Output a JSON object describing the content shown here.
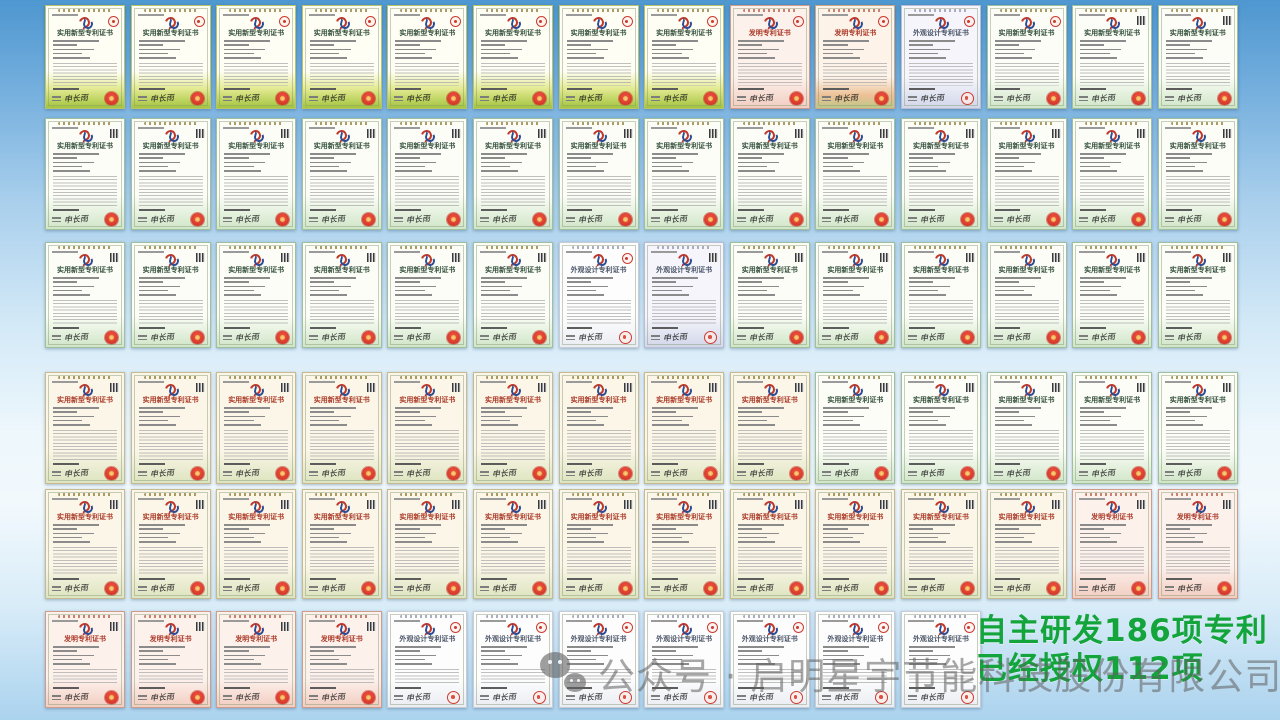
{
  "slide": {
    "overlay": {
      "line1": "自主研发186项专利",
      "line2": "已经授权112项",
      "color": "#13a53c"
    },
    "watermark": {
      "icon": "wechat-icon",
      "text": "公众号 · 启明星宇节能科技股份有限公司"
    },
    "background": {
      "top_color": "#4e97d0",
      "middle_color": "#f2f9fd",
      "bottom_color": "#abd3ee"
    }
  },
  "certificate": {
    "titles": {
      "utility": "实用新型专利证书",
      "invention": "发明专利证书",
      "design": "外观设计专利证书"
    },
    "signature": "申长雨",
    "corner_icons": {
      "seal": "red-seal-icon",
      "qr": "qr-code-icon"
    },
    "accent_colors": {
      "seal_red": "#cc3b30",
      "emblem_red": "#d0312d",
      "green_band": "#a3c43e"
    }
  },
  "grid": {
    "rows": [
      {
        "name": "row-1",
        "certs": [
          {
            "variant": "green",
            "type": "utility",
            "corner": "seal"
          },
          {
            "variant": "green",
            "type": "utility",
            "corner": "seal"
          },
          {
            "variant": "green",
            "type": "utility",
            "corner": "seal"
          },
          {
            "variant": "green",
            "type": "utility",
            "corner": "seal"
          },
          {
            "variant": "green",
            "type": "utility",
            "corner": "seal"
          },
          {
            "variant": "green",
            "type": "utility",
            "corner": "seal"
          },
          {
            "variant": "green",
            "type": "utility",
            "corner": "seal"
          },
          {
            "variant": "green",
            "type": "utility",
            "corner": "seal"
          },
          {
            "variant": "pink",
            "type": "invention",
            "corner": "seal"
          },
          {
            "variant": "pinkwarm",
            "type": "invention",
            "corner": "seal"
          },
          {
            "variant": "lavender",
            "type": "design",
            "corner": "seal"
          },
          {
            "variant": "mint",
            "type": "utility",
            "corner": "seal"
          },
          {
            "variant": "mint",
            "type": "utility",
            "corner": "qr"
          },
          {
            "variant": "mint",
            "type": "utility",
            "corner": "qr"
          }
        ]
      },
      {
        "name": "row-2",
        "certs": [
          {
            "variant": "mint",
            "type": "utility",
            "corner": "qr"
          },
          {
            "variant": "mint",
            "type": "utility",
            "corner": "qr"
          },
          {
            "variant": "mint",
            "type": "utility",
            "corner": "qr"
          },
          {
            "variant": "mint",
            "type": "utility",
            "corner": "qr"
          },
          {
            "variant": "mint",
            "type": "utility",
            "corner": "qr"
          },
          {
            "variant": "mint",
            "type": "utility",
            "corner": "qr"
          },
          {
            "variant": "mint",
            "type": "utility",
            "corner": "qr"
          },
          {
            "variant": "mint",
            "type": "utility",
            "corner": "qr"
          },
          {
            "variant": "mint",
            "type": "utility",
            "corner": "qr"
          },
          {
            "variant": "mint",
            "type": "utility",
            "corner": "qr"
          },
          {
            "variant": "mint",
            "type": "utility",
            "corner": "qr"
          },
          {
            "variant": "mint",
            "type": "utility",
            "corner": "qr"
          },
          {
            "variant": "mint",
            "type": "utility",
            "corner": "qr"
          },
          {
            "variant": "mint",
            "type": "utility",
            "corner": "qr"
          }
        ]
      },
      {
        "name": "row-3",
        "certs": [
          {
            "variant": "mint",
            "type": "utility",
            "corner": "qr"
          },
          {
            "variant": "mint",
            "type": "utility",
            "corner": "qr"
          },
          {
            "variant": "mint",
            "type": "utility",
            "corner": "qr"
          },
          {
            "variant": "mint",
            "type": "utility",
            "corner": "qr"
          },
          {
            "variant": "mint",
            "type": "utility",
            "corner": "qr"
          },
          {
            "variant": "mint",
            "type": "utility",
            "corner": "qr"
          },
          {
            "variant": "white",
            "type": "design",
            "corner": "seal"
          },
          {
            "variant": "lavender",
            "type": "design",
            "corner": "qr"
          },
          {
            "variant": "mint",
            "type": "utility",
            "corner": "qr"
          },
          {
            "variant": "mint",
            "type": "utility",
            "corner": "qr"
          },
          {
            "variant": "mint",
            "type": "utility",
            "corner": "qr"
          },
          {
            "variant": "mint",
            "type": "utility",
            "corner": "qr"
          },
          {
            "variant": "mint",
            "type": "utility",
            "corner": "qr"
          },
          {
            "variant": "mint",
            "type": "utility",
            "corner": "qr"
          }
        ]
      },
      {
        "name": "row-4",
        "certs": [
          {
            "variant": "ivory",
            "type": "utility",
            "corner": "qr"
          },
          {
            "variant": "ivory",
            "type": "utility",
            "corner": "qr"
          },
          {
            "variant": "ivory",
            "type": "utility",
            "corner": "qr"
          },
          {
            "variant": "ivory",
            "type": "utility",
            "corner": "qr"
          },
          {
            "variant": "ivory",
            "type": "utility",
            "corner": "qr"
          },
          {
            "variant": "ivory",
            "type": "utility",
            "corner": "qr"
          },
          {
            "variant": "ivory",
            "type": "utility",
            "corner": "qr"
          },
          {
            "variant": "ivory",
            "type": "utility",
            "corner": "qr"
          },
          {
            "variant": "ivory",
            "type": "utility",
            "corner": "qr"
          },
          {
            "variant": "mint",
            "type": "utility",
            "corner": "qr"
          },
          {
            "variant": "mint",
            "type": "utility",
            "corner": "qr"
          },
          {
            "variant": "mint",
            "type": "utility",
            "corner": "qr"
          },
          {
            "variant": "mint",
            "type": "utility",
            "corner": "qr"
          },
          {
            "variant": "mint",
            "type": "utility",
            "corner": "qr"
          }
        ]
      },
      {
        "name": "row-5",
        "certs": [
          {
            "variant": "ivory",
            "type": "utility",
            "corner": "qr"
          },
          {
            "variant": "ivory",
            "type": "utility",
            "corner": "qr"
          },
          {
            "variant": "ivory",
            "type": "utility",
            "corner": "qr"
          },
          {
            "variant": "ivory",
            "type": "utility",
            "corner": "qr"
          },
          {
            "variant": "ivory",
            "type": "utility",
            "corner": "qr"
          },
          {
            "variant": "ivory",
            "type": "utility",
            "corner": "qr"
          },
          {
            "variant": "ivory",
            "type": "utility",
            "corner": "qr"
          },
          {
            "variant": "ivory",
            "type": "utility",
            "corner": "qr"
          },
          {
            "variant": "ivory",
            "type": "utility",
            "corner": "qr"
          },
          {
            "variant": "ivory",
            "type": "utility",
            "corner": "qr"
          },
          {
            "variant": "ivory",
            "type": "utility",
            "corner": "qr"
          },
          {
            "variant": "ivory",
            "type": "utility",
            "corner": "qr"
          },
          {
            "variant": "pink",
            "type": "invention",
            "corner": "qr"
          },
          {
            "variant": "pink",
            "type": "invention",
            "corner": "qr"
          }
        ]
      },
      {
        "name": "row-6",
        "certs": [
          {
            "variant": "pink",
            "type": "invention",
            "corner": "qr"
          },
          {
            "variant": "pink",
            "type": "invention",
            "corner": "qr"
          },
          {
            "variant": "pink",
            "type": "invention",
            "corner": "qr"
          },
          {
            "variant": "pink",
            "type": "invention",
            "corner": "qr"
          },
          {
            "variant": "white",
            "type": "design",
            "corner": "seal"
          },
          {
            "variant": "white",
            "type": "design",
            "corner": "seal"
          },
          {
            "variant": "white",
            "type": "design",
            "corner": "seal"
          },
          {
            "variant": "white",
            "type": "design",
            "corner": "seal"
          },
          {
            "variant": "white",
            "type": "design",
            "corner": "seal"
          },
          {
            "variant": "white",
            "type": "design",
            "corner": "seal"
          },
          {
            "variant": "white",
            "type": "design",
            "corner": "seal"
          }
        ]
      }
    ]
  }
}
